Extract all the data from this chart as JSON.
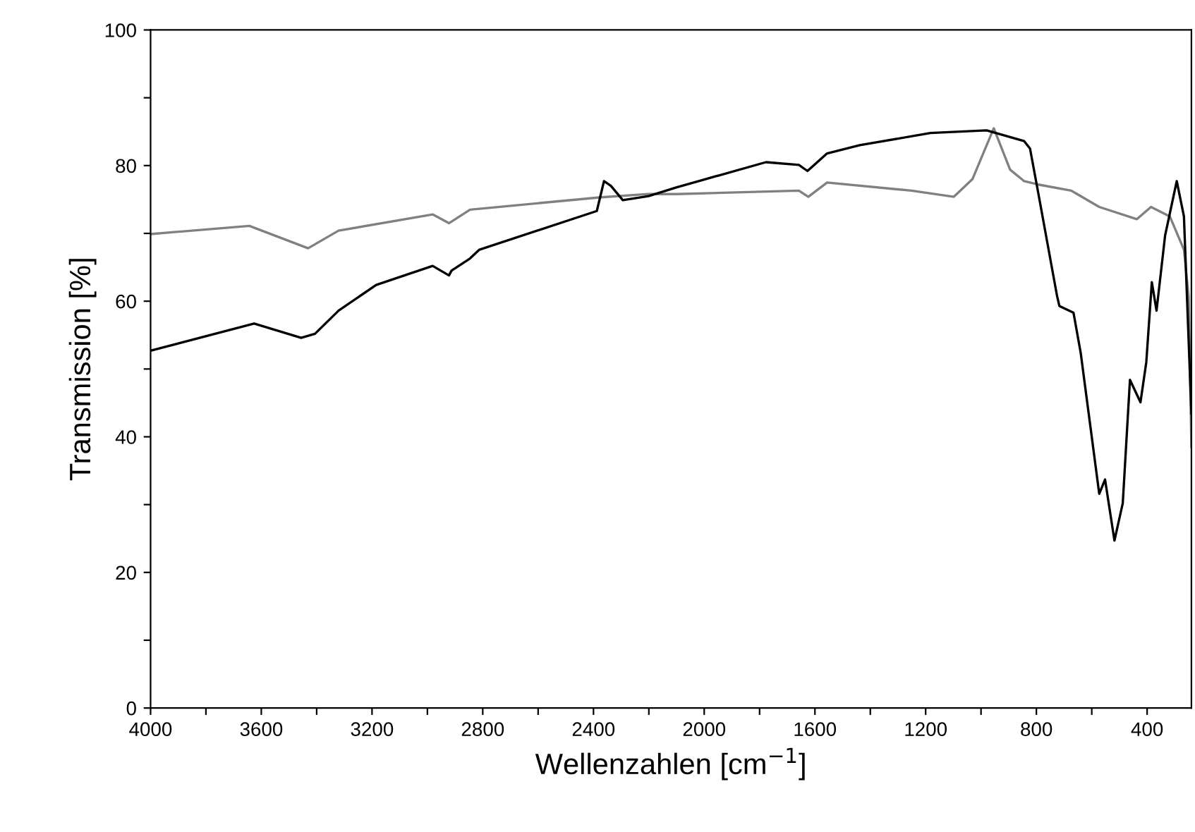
{
  "chart_data": {
    "type": "line",
    "xlabel": "Wellenzahlen [cm$^{−1}$]",
    "ylabel": "Transmission [%]",
    "xlim": [
      4000,
      240
    ],
    "ylim": [
      0,
      100
    ],
    "xticks": [
      4000,
      {
        "value": 3800,
        "label": null
      },
      3600,
      {
        "value": 3400,
        "label": null
      },
      3200,
      {
        "value": 3000,
        "label": null
      },
      2800,
      {
        "value": 2600,
        "label": null
      },
      2400,
      {
        "value": 2200,
        "label": null
      },
      2000,
      {
        "value": 1800,
        "label": null
      },
      1600,
      {
        "value": 1400,
        "label": null
      },
      1200,
      {
        "value": 1000,
        "label": null
      },
      800,
      {
        "value": 600,
        "label": null
      },
      400
    ],
    "yticks": [
      0,
      {
        "value": 10,
        "label": null
      },
      20,
      {
        "value": 30,
        "label": null
      },
      40,
      {
        "value": 50,
        "label": null
      },
      60,
      {
        "value": 70,
        "label": null
      },
      80,
      {
        "value": 90,
        "label": null
      },
      100
    ],
    "grid": false,
    "legend": false,
    "marker": "none",
    "line_style": "solid",
    "series": [
      {
        "color": "#808080",
        "x": [
          4000,
          3643,
          3431,
          3321,
          2981,
          2922,
          2846,
          2379,
          2201,
          2099,
          1658,
          1624,
          1556,
          1251,
          1098,
          1031,
          954,
          895,
          844,
          793,
          674,
          573,
          437,
          386,
          318,
          267,
          250,
          240
        ],
        "values": [
          69.9,
          71.1,
          67.8,
          70.4,
          72.8,
          71.5,
          73.5,
          75.3,
          75.8,
          75.8,
          76.3,
          75.4,
          77.5,
          76.3,
          75.4,
          78.0,
          85.5,
          79.4,
          77.7,
          77.2,
          76.3,
          73.9,
          72.1,
          73.9,
          72.5,
          67.6,
          60.7,
          38.5
        ]
      },
      {
        "color": "#000000",
        "x": [
          4000,
          3626,
          3456,
          3406,
          3321,
          3185,
          2981,
          2922,
          2913,
          2846,
          2812,
          2388,
          2362,
          2337,
          2294,
          2201,
          2099,
          1777,
          1658,
          1627,
          1556,
          1438,
          1183,
          980,
          844,
          823,
          793,
          725,
          717,
          666,
          640,
          573,
          552,
          518,
          488,
          462,
          424,
          403,
          383,
          366,
          335,
          293,
          267,
          240
        ],
        "values": [
          52.7,
          56.7,
          54.6,
          55.2,
          58.6,
          62.4,
          65.2,
          63.8,
          64.5,
          66.3,
          67.6,
          73.3,
          77.7,
          77.0,
          74.9,
          75.5,
          76.8,
          80.5,
          80.1,
          79.2,
          81.8,
          83.0,
          84.8,
          85.2,
          83.6,
          82.5,
          75.9,
          60.7,
          59.3,
          58.3,
          52.4,
          31.6,
          33.7,
          24.7,
          30.2,
          48.4,
          45.1,
          51.0,
          62.8,
          58.6,
          69.7,
          77.7,
          72.5,
          43.4
        ]
      }
    ]
  }
}
